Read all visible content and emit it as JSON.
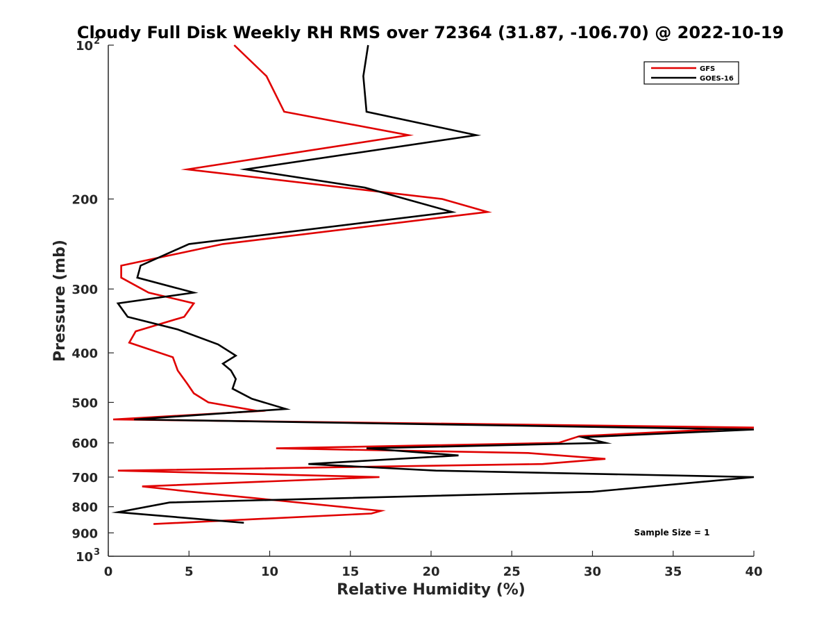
{
  "chart_data": {
    "type": "line",
    "title": "Cloudy Full Disk Weekly RH RMS over 72364 (31.87, -106.70) @ 2022-10-19",
    "xlabel": "Relative Humidity (%)",
    "ylabel": "Pressure (mb)",
    "xlim": [
      0,
      40
    ],
    "ylim": [
      100,
      1000
    ],
    "yscale": "log",
    "y_reversed": true,
    "grid": false,
    "legend_position": "top-right",
    "x_ticks": [
      "0",
      "5",
      "10",
      "15",
      "20",
      "25",
      "30",
      "35",
      "40"
    ],
    "y_ticks": [
      {
        "value": 100,
        "label": "10",
        "sup": "2"
      },
      {
        "value": 200,
        "label": "200",
        "sup": ""
      },
      {
        "value": 300,
        "label": "300",
        "sup": ""
      },
      {
        "value": 400,
        "label": "400",
        "sup": ""
      },
      {
        "value": 500,
        "label": "500",
        "sup": ""
      },
      {
        "value": 600,
        "label": "600",
        "sup": ""
      },
      {
        "value": 700,
        "label": "700",
        "sup": ""
      },
      {
        "value": 800,
        "label": "800",
        "sup": ""
      },
      {
        "value": 900,
        "label": "900",
        "sup": ""
      },
      {
        "value": 1000,
        "label": "10",
        "sup": "3"
      }
    ],
    "series": [
      {
        "name": "GFS",
        "color": "#e00000",
        "points": [
          [
            7.8,
            100
          ],
          [
            9.8,
            115
          ],
          [
            10.9,
            135
          ],
          [
            18.6,
            150
          ],
          [
            4.9,
            175
          ],
          [
            20.7,
            200
          ],
          [
            23.5,
            212
          ],
          [
            7.1,
            245
          ],
          [
            0.8,
            270
          ],
          [
            0.8,
            285
          ],
          [
            2.5,
            305
          ],
          [
            5.3,
            320
          ],
          [
            4.7,
            340
          ],
          [
            1.7,
            363
          ],
          [
            1.3,
            382
          ],
          [
            4.0,
            408
          ],
          [
            4.3,
            433
          ],
          [
            4.9,
            460
          ],
          [
            5.3,
            480
          ],
          [
            6.2,
            500
          ],
          [
            9.3,
            520
          ],
          [
            0.3,
            540
          ],
          [
            40.0,
            560
          ],
          [
            29.2,
            582
          ],
          [
            27.9,
            600
          ],
          [
            10.4,
            615
          ],
          [
            26.0,
            628
          ],
          [
            30.8,
            645
          ],
          [
            26.9,
            660
          ],
          [
            0.6,
            680
          ],
          [
            16.8,
            700
          ],
          [
            2.1,
            730
          ],
          [
            6.0,
            753
          ],
          [
            10.0,
            775
          ],
          [
            16.9,
            815
          ],
          [
            16.3,
            825
          ],
          [
            2.8,
            865
          ]
        ]
      },
      {
        "name": "GOES-16",
        "color": "#000000",
        "points": [
          [
            16.1,
            100
          ],
          [
            15.8,
            115
          ],
          [
            16.0,
            135
          ],
          [
            22.8,
            150
          ],
          [
            8.5,
            175
          ],
          [
            15.9,
            190
          ],
          [
            21.3,
            212
          ],
          [
            5.0,
            245
          ],
          [
            2.0,
            270
          ],
          [
            1.8,
            285
          ],
          [
            5.3,
            305
          ],
          [
            0.6,
            320
          ],
          [
            1.2,
            340
          ],
          [
            4.3,
            360
          ],
          [
            6.8,
            385
          ],
          [
            7.9,
            405
          ],
          [
            7.1,
            420
          ],
          [
            7.6,
            433
          ],
          [
            7.9,
            450
          ],
          [
            7.7,
            470
          ],
          [
            8.9,
            492
          ],
          [
            11.0,
            515
          ],
          [
            1.6,
            540
          ],
          [
            40.0,
            565
          ],
          [
            29.4,
            585
          ],
          [
            30.8,
            600
          ],
          [
            16.0,
            615
          ],
          [
            21.7,
            635
          ],
          [
            12.4,
            660
          ],
          [
            20.3,
            680
          ],
          [
            40.0,
            700
          ],
          [
            30.0,
            748
          ],
          [
            3.8,
            785
          ],
          [
            0.6,
            820
          ],
          [
            8.4,
            860
          ]
        ]
      }
    ],
    "annotation": "Sample Size = 1"
  }
}
